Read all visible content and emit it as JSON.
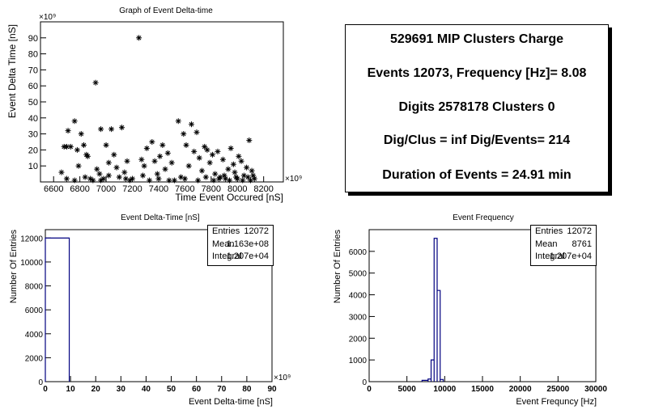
{
  "charts": [
    {
      "type": "scatter",
      "title": "Graph of Event Delta-time",
      "xlabel": "Time Event Occured [nS]",
      "ylabel": "Event Delta Time [nS]",
      "x_exponent": "×10⁹",
      "y_exponent": "×10⁹",
      "xlim": [
        6500,
        8350
      ],
      "ylim": [
        0,
        100
      ],
      "x_ticks": [
        6600,
        6800,
        7000,
        7200,
        7400,
        7600,
        7800,
        8000,
        8200
      ],
      "y_ticks": [
        10,
        20,
        30,
        40,
        50,
        60,
        70,
        80,
        90
      ],
      "marker": "*",
      "points": [
        [
          6660,
          6
        ],
        [
          6680,
          22
        ],
        [
          6700,
          22
        ],
        [
          6710,
          32
        ],
        [
          6730,
          22
        ],
        [
          6760,
          38
        ],
        [
          6780,
          20
        ],
        [
          6790,
          10
        ],
        [
          6810,
          30
        ],
        [
          6830,
          23
        ],
        [
          6850,
          17
        ],
        [
          6860,
          16
        ],
        [
          6880,
          2
        ],
        [
          6900,
          1
        ],
        [
          6920,
          62
        ],
        [
          6930,
          8
        ],
        [
          6950,
          5
        ],
        [
          6960,
          33
        ],
        [
          6980,
          2
        ],
        [
          7000,
          23
        ],
        [
          7020,
          12
        ],
        [
          7040,
          33
        ],
        [
          7060,
          17
        ],
        [
          7080,
          9
        ],
        [
          7100,
          3
        ],
        [
          7120,
          34
        ],
        [
          7140,
          6
        ],
        [
          7160,
          13
        ],
        [
          7180,
          1
        ],
        [
          7200,
          2
        ],
        [
          7250,
          90
        ],
        [
          7270,
          14
        ],
        [
          7290,
          10
        ],
        [
          7310,
          21
        ],
        [
          7330,
          1
        ],
        [
          7350,
          25
        ],
        [
          7370,
          13
        ],
        [
          7390,
          5
        ],
        [
          7410,
          16
        ],
        [
          7430,
          23
        ],
        [
          7450,
          8
        ],
        [
          7470,
          18
        ],
        [
          7500,
          12
        ],
        [
          7520,
          1
        ],
        [
          7550,
          38
        ],
        [
          7570,
          3
        ],
        [
          7590,
          30
        ],
        [
          7610,
          23
        ],
        [
          7630,
          10
        ],
        [
          7650,
          36
        ],
        [
          7670,
          19
        ],
        [
          7690,
          31
        ],
        [
          7710,
          15
        ],
        [
          7730,
          7
        ],
        [
          7750,
          22
        ],
        [
          7770,
          20
        ],
        [
          7790,
          12
        ],
        [
          7810,
          17
        ],
        [
          7830,
          5
        ],
        [
          7850,
          19
        ],
        [
          7870,
          3
        ],
        [
          7890,
          14
        ],
        [
          7910,
          2
        ],
        [
          7930,
          8
        ],
        [
          7950,
          21
        ],
        [
          7970,
          11
        ],
        [
          7990,
          3
        ],
        [
          8010,
          16
        ],
        [
          8030,
          13
        ],
        [
          8050,
          4
        ],
        [
          8070,
          9
        ],
        [
          8090,
          26
        ],
        [
          8110,
          7
        ],
        [
          8130,
          2
        ],
        [
          6700,
          2
        ],
        [
          6760,
          1
        ],
        [
          6840,
          3
        ],
        [
          6960,
          1
        ],
        [
          7020,
          4
        ],
        [
          7150,
          2
        ],
        [
          7280,
          4
        ],
        [
          7400,
          2
        ],
        [
          7480,
          1
        ],
        [
          7600,
          2
        ],
        [
          7700,
          1
        ],
        [
          7760,
          3
        ],
        [
          7820,
          1
        ],
        [
          7860,
          2
        ],
        [
          7900,
          4
        ],
        [
          7940,
          1
        ],
        [
          7980,
          6
        ],
        [
          8000,
          2
        ],
        [
          8040,
          1
        ],
        [
          8080,
          3
        ],
        [
          8100,
          1
        ],
        [
          8120,
          4
        ]
      ]
    },
    {
      "type": "bar",
      "title": "Event Delta-Time [nS]",
      "xlabel": "Event Delta-time [nS]",
      "ylabel": "Number Of Entries",
      "x_exponent": "×10⁹",
      "xlim": [
        0,
        90
      ],
      "ylim": [
        0,
        12700
      ],
      "x_ticks": [
        0,
        10,
        20,
        30,
        40,
        50,
        60,
        70,
        80,
        90
      ],
      "y_ticks": [
        0,
        2000,
        4000,
        6000,
        8000,
        10000,
        12000
      ],
      "bins": [
        [
          0,
          9.5,
          12000
        ]
      ],
      "stats": {
        "Entries": "12072",
        "Mean": "1.163e+08",
        "Integral": "1.207e+04"
      }
    },
    {
      "type": "bar",
      "title": "Event Frequency",
      "xlabel": "Event Frequncy [Hz]",
      "ylabel": "Number Of Entries",
      "xlim": [
        0,
        30000
      ],
      "ylim": [
        0,
        7000
      ],
      "x_ticks": [
        0,
        5000,
        10000,
        15000,
        20000,
        25000,
        30000
      ],
      "y_ticks": [
        0,
        1000,
        2000,
        3000,
        4000,
        5000,
        6000
      ],
      "bins": [
        [
          7000,
          7800,
          60
        ],
        [
          7800,
          8200,
          120
        ],
        [
          8200,
          8600,
          1000
        ],
        [
          8600,
          9000,
          6600
        ],
        [
          9000,
          9400,
          4200
        ],
        [
          9400,
          9800,
          100
        ]
      ],
      "stats": {
        "Entries": "12072",
        "Mean": "8761",
        "Integral": "1.207e+04"
      }
    }
  ],
  "summary": {
    "lines": [
      "529691 MIP Clusters Charge",
      "Events 12073, Frequency [Hz]= 8.08",
      "Digits 2578178 Clusters 0",
      "Dig/Clus = inf Dig/Events= 214",
      "Duration of Events = 24.91 min"
    ]
  },
  "colors": {
    "histogram_line": "#000080",
    "axis": "#000000",
    "marker": "#000000"
  }
}
